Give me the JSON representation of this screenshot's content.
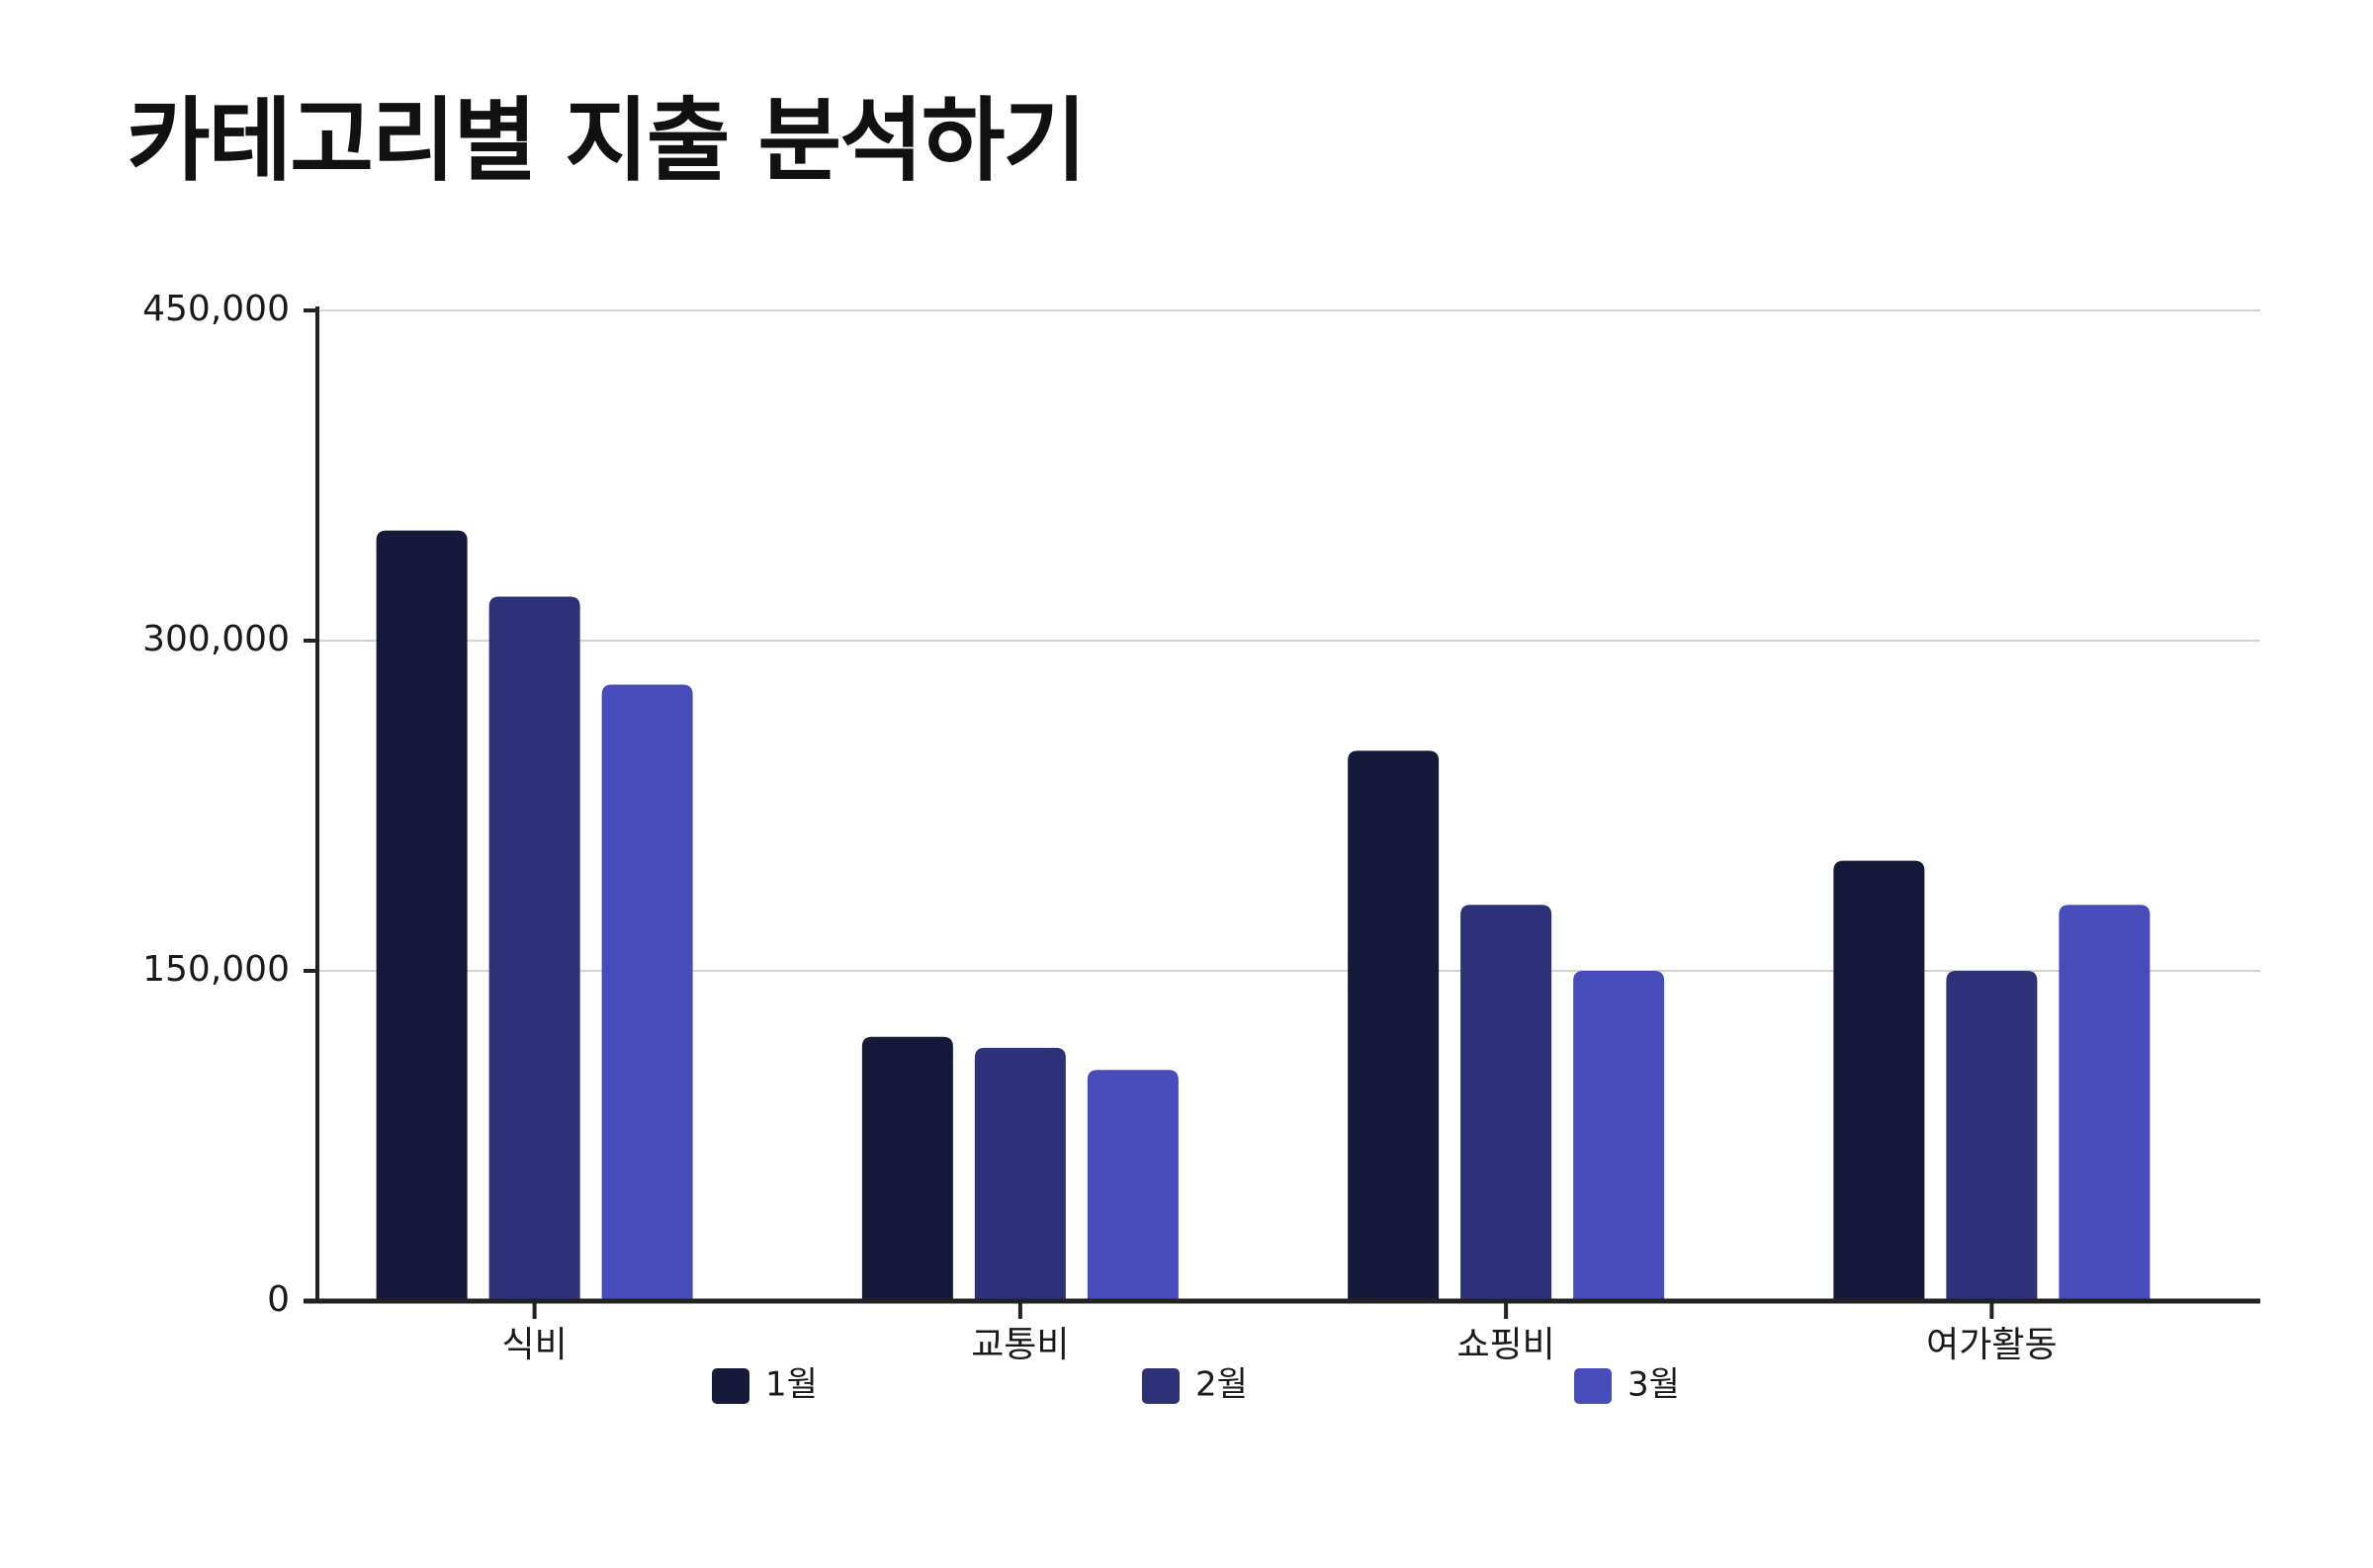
{
  "chart_data": {
    "type": "bar",
    "title": "카테고리별 지출 분석하기",
    "xlabel": "",
    "ylabel": "",
    "categories": [
      "식비",
      "교통비",
      "쇼핑비",
      "여가활동"
    ],
    "series": [
      {
        "name": "1월",
        "values": [
          350000,
          120000,
          250000,
          200000
        ],
        "color": "#16193a"
      },
      {
        "name": "2월",
        "values": [
          320000,
          115000,
          180000,
          150000
        ],
        "color": "#2e3178"
      },
      {
        "name": "3월",
        "values": [
          280000,
          105000,
          150000,
          180000
        ],
        "color": "#464dbb"
      }
    ],
    "ylim": [
      0,
      450000
    ],
    "yticks": [
      0,
      150000,
      300000,
      450000
    ],
    "ytick_labels": [
      "0",
      "150,000",
      "300,000",
      "450,000"
    ],
    "grid": true,
    "legend": "bottom"
  }
}
